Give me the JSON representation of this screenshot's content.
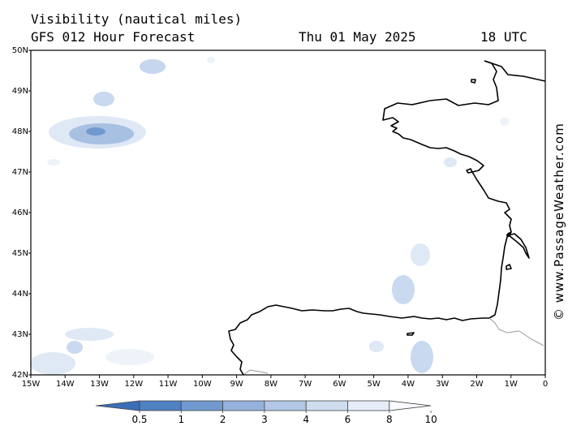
{
  "header": {
    "title": "Visibility (nautical miles)",
    "subtitle": "GFS 012 Hour Forecast",
    "date": "Thu 01 May 2025",
    "time": "18 UTC"
  },
  "map": {
    "lat_labels": [
      "50N",
      "49N",
      "48N",
      "47N",
      "46N",
      "45N",
      "44N",
      "43N",
      "42N"
    ],
    "lon_labels": [
      "15W",
      "14W",
      "13W",
      "12W",
      "11W",
      "10W",
      "9W",
      "8W",
      "7W",
      "6W",
      "5W",
      "4W",
      "3W",
      "2W",
      "1W",
      "0"
    ],
    "lat_range": [
      42,
      50
    ],
    "lon_range": [
      -15,
      0
    ]
  },
  "colorbar": {
    "labels": [
      "0.5",
      "1",
      "2",
      "3",
      "4",
      "6",
      "8",
      "10"
    ],
    "colors": [
      "#3a6fb8",
      "#4f80c2",
      "#7199cf",
      "#94b2db",
      "#b3c8e6",
      "#cfdcf0",
      "#e6edf8",
      "#f8fafd"
    ]
  },
  "watermark": "© www.PassageWeather.com"
}
